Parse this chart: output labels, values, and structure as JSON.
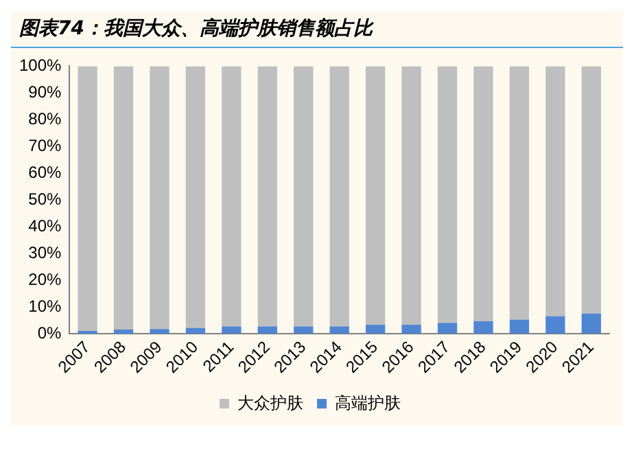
{
  "chart_data": {
    "type": "bar",
    "title": "图表74：我国大众、高端护肤销售额占比",
    "stacked": true,
    "categories": [
      "2007",
      "2008",
      "2009",
      "2010",
      "2011",
      "2012",
      "2013",
      "2014",
      "2015",
      "2016",
      "2017",
      "2018",
      "2019",
      "2020",
      "2021"
    ],
    "series": [
      {
        "name": "高端护肤",
        "color": "#4f86d4",
        "values": [
          1.0,
          1.5,
          1.7,
          2.1,
          2.7,
          2.7,
          2.7,
          2.7,
          3.3,
          3.3,
          4.0,
          4.6,
          5.2,
          6.5,
          7.5
        ]
      },
      {
        "name": "大众护肤",
        "color": "#bfbfbf",
        "values": [
          99.0,
          98.5,
          98.3,
          97.9,
          97.3,
          97.3,
          97.3,
          97.3,
          96.7,
          96.7,
          96.0,
          95.4,
          94.8,
          93.5,
          92.5
        ]
      }
    ],
    "ylim": [
      0,
      100
    ],
    "yticks": [
      {
        "value": 0,
        "label": "0%"
      },
      {
        "value": 10,
        "label": "10%"
      },
      {
        "value": 20,
        "label": "20%"
      },
      {
        "value": 30,
        "label": "30%"
      },
      {
        "value": 40,
        "label": "40%"
      },
      {
        "value": 50,
        "label": "50%"
      },
      {
        "value": 60,
        "label": "60%"
      },
      {
        "value": 70,
        "label": "70%"
      },
      {
        "value": 80,
        "label": "80%"
      },
      {
        "value": 90,
        "label": "90%"
      },
      {
        "value": 100,
        "label": "100%"
      }
    ],
    "legend": "bottom"
  }
}
